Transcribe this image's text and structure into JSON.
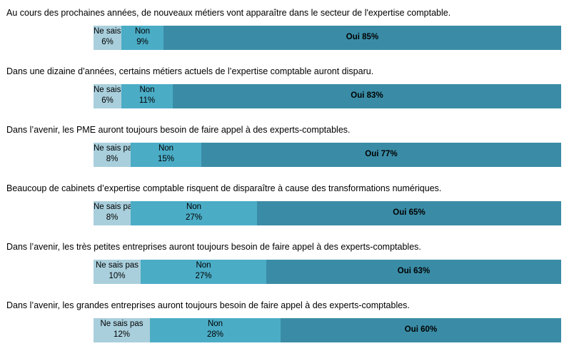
{
  "chart_data": {
    "type": "bar",
    "orientation": "horizontal",
    "stacked": true,
    "unit": "%",
    "colors": {
      "ne_sais_pas": "#a9cfdc",
      "non": "#4bacc6",
      "oui": "#3a8ca6"
    },
    "rows": [
      {
        "question": "Au cours des prochaines années, de nouveaux métiers vont apparaître dans le secteur de l'expertise comptable.",
        "segments": [
          {
            "key": "ne_sais_pas",
            "label": "Ne sais pas",
            "value": 6,
            "text": "6%"
          },
          {
            "key": "non",
            "label": "Non",
            "value": 9,
            "text": "9%"
          },
          {
            "key": "oui",
            "label": "Oui 85%",
            "value": 85
          }
        ]
      },
      {
        "question": "Dans une dizaine d’années, certains métiers actuels de l’expertise comptable auront disparu.",
        "segments": [
          {
            "key": "ne_sais_pas",
            "label": "Ne sais pas",
            "value": 6,
            "text": "6%"
          },
          {
            "key": "non",
            "label": "Non",
            "value": 11,
            "text": "11%"
          },
          {
            "key": "oui",
            "label": "Oui 83%",
            "value": 83
          }
        ]
      },
      {
        "question": "Dans l’avenir, les PME auront toujours besoin de faire appel à des experts-comptables.",
        "segments": [
          {
            "key": "ne_sais_pas",
            "label": "Ne sais pas",
            "value": 8,
            "text": "8%"
          },
          {
            "key": "non",
            "label": "Non",
            "value": 15,
            "text": "15%"
          },
          {
            "key": "oui",
            "label": "Oui 77%",
            "value": 77
          }
        ]
      },
      {
        "question": "Beaucoup de cabinets d’expertise comptable risquent de disparaître à cause des transformations numériques.",
        "segments": [
          {
            "key": "ne_sais_pas",
            "label": "Ne sais pas",
            "value": 8,
            "text": "8%"
          },
          {
            "key": "non",
            "label": "Non",
            "value": 27,
            "text": "27%"
          },
          {
            "key": "oui",
            "label": "Oui 65%",
            "value": 65
          }
        ]
      },
      {
        "question": "Dans l’avenir, les très petites entreprises auront toujours besoin de faire appel à des experts-comptables.",
        "segments": [
          {
            "key": "ne_sais_pas",
            "label": "Ne sais pas",
            "value": 10,
            "text": "10%"
          },
          {
            "key": "non",
            "label": "Non",
            "value": 27,
            "text": "27%"
          },
          {
            "key": "oui",
            "label": "Oui 63%",
            "value": 63
          }
        ]
      },
      {
        "question": "Dans l’avenir, les grandes entreprises auront toujours besoin de faire appel à des experts-comptables.",
        "segments": [
          {
            "key": "ne_sais_pas",
            "label": "Ne sais pas",
            "value": 12,
            "text": "12%"
          },
          {
            "key": "non",
            "label": "Non",
            "value": 28,
            "text": "28%"
          },
          {
            "key": "oui",
            "label": "Oui 60%",
            "value": 60
          }
        ]
      }
    ]
  }
}
